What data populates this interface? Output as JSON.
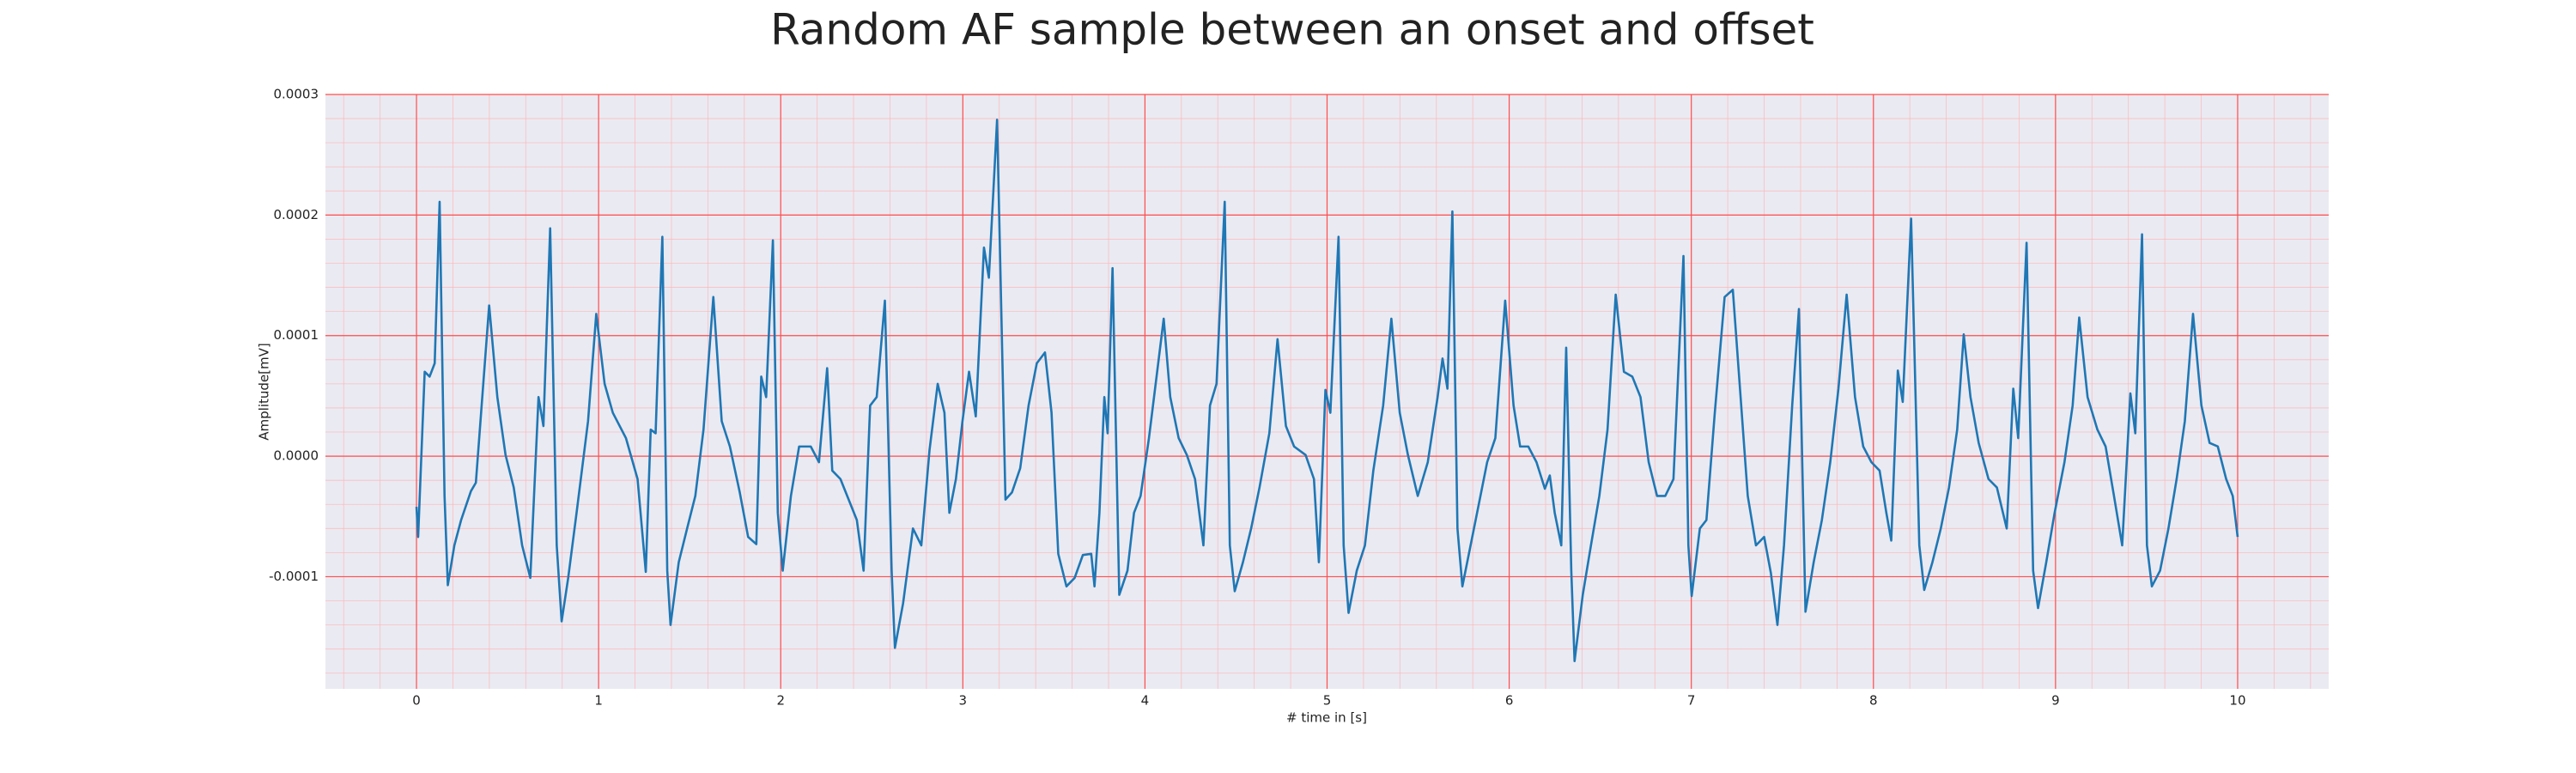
{
  "chart_data": {
    "type": "line",
    "title": "Random AF sample between an onset and offset",
    "xlabel": "# time in [s]",
    "ylabel": "Amplitude[mV]",
    "color": "#1f77b4",
    "grid": true,
    "minor_grid": true,
    "xlim": [
      -0.5,
      10.5
    ],
    "ylim": [
      -0.000193,
      0.0003
    ],
    "xticks": [
      0,
      1,
      2,
      3,
      4,
      5,
      6,
      7,
      8,
      9,
      10
    ],
    "yticks": [
      {
        "value": -0.0001,
        "label": "-0.0001"
      },
      {
        "value": 0,
        "label": "0.0000"
      },
      {
        "value": 0.0001,
        "label": "0.0001"
      },
      {
        "value": 0.0002,
        "label": "0.0002"
      },
      {
        "value": 0.0003,
        "label": "0.0003"
      }
    ],
    "x": [
      0,
      0.009,
      0.045,
      0.072,
      0.1,
      0.127,
      0.154,
      0.172,
      0.208,
      0.245,
      0.299,
      0.326,
      0.399,
      0.444,
      0.489,
      0.534,
      0.58,
      0.625,
      0.67,
      0.697,
      0.734,
      0.77,
      0.797,
      0.833,
      0.879,
      0.942,
      0.987,
      1.033,
      1.078,
      1.15,
      1.214,
      1.259,
      1.286,
      1.313,
      1.35,
      1.377,
      1.395,
      1.44,
      1.486,
      1.531,
      1.576,
      1.63,
      1.676,
      1.721,
      1.775,
      1.821,
      1.866,
      1.893,
      1.92,
      1.957,
      1.984,
      2.011,
      2.056,
      2.101,
      2.165,
      2.21,
      2.255,
      2.283,
      2.328,
      2.373,
      2.418,
      2.455,
      2.491,
      2.527,
      2.572,
      2.609,
      2.627,
      2.672,
      2.726,
      2.772,
      2.817,
      2.862,
      2.899,
      2.926,
      2.962,
      2.998,
      3.034,
      3.071,
      3.116,
      3.143,
      3.188,
      3.234,
      3.27,
      3.315,
      3.361,
      3.406,
      3.451,
      3.487,
      3.524,
      3.569,
      3.614,
      3.659,
      3.705,
      3.723,
      3.75,
      3.777,
      3.795,
      3.822,
      3.859,
      3.904,
      3.94,
      3.976,
      4.022,
      4.067,
      4.103,
      4.139,
      4.185,
      4.23,
      4.275,
      4.321,
      4.357,
      4.393,
      4.438,
      4.466,
      4.493,
      4.538,
      4.583,
      4.629,
      4.683,
      4.728,
      4.774,
      4.819,
      4.882,
      4.928,
      4.955,
      4.991,
      5.018,
      5.063,
      5.091,
      5.118,
      5.163,
      5.208,
      5.254,
      5.308,
      5.353,
      5.399,
      5.444,
      5.498,
      5.553,
      5.607,
      5.634,
      5.661,
      5.688,
      5.716,
      5.743,
      5.788,
      5.833,
      5.879,
      5.924,
      5.978,
      6.024,
      6.06,
      6.105,
      6.15,
      6.196,
      6.223,
      6.25,
      6.286,
      6.313,
      6.341,
      6.359,
      6.404,
      6.449,
      6.495,
      6.54,
      6.585,
      6.63,
      6.676,
      6.721,
      6.766,
      6.812,
      6.857,
      6.902,
      6.957,
      6.984,
      7.002,
      7.047,
      7.083,
      7.129,
      7.183,
      7.228,
      7.264,
      7.31,
      7.355,
      7.4,
      7.437,
      7.473,
      7.509,
      7.554,
      7.591,
      7.627,
      7.672,
      7.717,
      7.763,
      7.808,
      7.853,
      7.899,
      7.944,
      7.989,
      8.034,
      8.071,
      8.098,
      8.134,
      8.161,
      8.207,
      8.252,
      8.279,
      8.324,
      8.37,
      8.415,
      8.46,
      8.496,
      8.533,
      8.578,
      8.632,
      8.678,
      8.732,
      8.768,
      8.795,
      8.841,
      8.877,
      8.904,
      8.949,
      8.995,
      9.049,
      9.094,
      9.13,
      9.176,
      9.23,
      9.275,
      9.321,
      9.366,
      9.411,
      9.438,
      9.475,
      9.502,
      9.529,
      9.574,
      9.62,
      9.665,
      9.71,
      9.755,
      9.801,
      9.846,
      9.891,
      9.937,
      9.973,
      10.0
    ],
    "values": [
      -4.2e-05,
      -6.7e-05,
      7e-05,
      6.6e-05,
      7.7e-05,
      0.000211,
      -3.3e-05,
      -0.000107,
      -7.4e-05,
      -5.3e-05,
      -2.9e-05,
      -2.2e-05,
      0.000125,
      4.9e-05,
      1e-06,
      -2.6e-05,
      -7.4e-05,
      -0.000101,
      4.9e-05,
      2.5e-05,
      0.000189,
      -7.4e-05,
      -0.000137,
      -0.000101,
      -4.7e-05,
      2.9e-05,
      0.000118,
      6e-05,
      3.6e-05,
      1.5e-05,
      -1.9e-05,
      -9.6e-05,
      2.2e-05,
      1.9e-05,
      0.000182,
      -9.5e-05,
      -0.00014,
      -8.8e-05,
      -6e-05,
      -3.3e-05,
      2.2e-05,
      0.000132,
      2.9e-05,
      8e-06,
      -3e-05,
      -6.7e-05,
      -7.3e-05,
      6.6e-05,
      4.9e-05,
      0.000179,
      -4.7e-05,
      -9.5e-05,
      -3.3e-05,
      8e-06,
      8e-06,
      -5e-06,
      7.3e-05,
      -1.2e-05,
      -1.9e-05,
      -3.6e-05,
      -5.3e-05,
      -9.5e-05,
      4.2e-05,
      4.9e-05,
      0.000129,
      -9.5e-05,
      -0.000159,
      -0.000122,
      -6e-05,
      -7.4e-05,
      5e-06,
      6e-05,
      3.6e-05,
      -4.7e-05,
      -1.9e-05,
      2.9e-05,
      7e-05,
      3.3e-05,
      0.000173,
      0.000148,
      0.000279,
      -3.6e-05,
      -3e-05,
      -1e-05,
      4.2e-05,
      7.7e-05,
      8.6e-05,
      3.6e-05,
      -8.1e-05,
      -0.000108,
      -0.000101,
      -8.2e-05,
      -8.1e-05,
      -0.000108,
      -4.7e-05,
      4.9e-05,
      1.9e-05,
      0.000156,
      -0.000115,
      -9.5e-05,
      -4.7e-05,
      -3.3e-05,
      1.5e-05,
      7e-05,
      0.000114,
      4.9e-05,
      1.5e-05,
      1e-06,
      -1.9e-05,
      -7.4e-05,
      4.2e-05,
      6e-05,
      0.000211,
      -7.4e-05,
      -0.000112,
      -8.8e-05,
      -6e-05,
      -2.6e-05,
      1.9e-05,
      9.7e-05,
      2.5e-05,
      8e-06,
      1e-06,
      -1.9e-05,
      -8.8e-05,
      5.5e-05,
      3.6e-05,
      0.000182,
      -7.4e-05,
      -0.00013,
      -9.5e-05,
      -7.4e-05,
      -1.2e-05,
      4.2e-05,
      0.000114,
      3.6e-05,
      1e-06,
      -3.3e-05,
      -5e-06,
      4.9e-05,
      8.1e-05,
      5.6e-05,
      0.000203,
      -6e-05,
      -0.000108,
      -7.4e-05,
      -4e-05,
      -5e-06,
      1.5e-05,
      0.000129,
      4.2e-05,
      8e-06,
      8e-06,
      -5e-06,
      -2.7e-05,
      -1.6e-05,
      -4.7e-05,
      -7.4e-05,
      9e-05,
      -9.5e-05,
      -0.00017,
      -0.000115,
      -7.4e-05,
      -3.3e-05,
      2.2e-05,
      0.000134,
      7e-05,
      6.6e-05,
      4.9e-05,
      -5e-06,
      -3.3e-05,
      -3.3e-05,
      -1.9e-05,
      0.000166,
      -7.4e-05,
      -0.000116,
      -6e-05,
      -5.3e-05,
      3.6e-05,
      0.000132,
      0.000138,
      6.3e-05,
      -3.3e-05,
      -7.4e-05,
      -6.7e-05,
      -9.7e-05,
      -0.00014,
      -7.4e-05,
      4.2e-05,
      0.000122,
      -0.000129,
      -8.8e-05,
      -5.3e-05,
      -5e-06,
      5.6e-05,
      0.000134,
      4.9e-05,
      8e-06,
      -5e-06,
      -1.2e-05,
      -4.7e-05,
      -7e-05,
      7.1e-05,
      4.5e-05,
      0.000197,
      -7.4e-05,
      -0.000111,
      -8.8e-05,
      -6e-05,
      -2.6e-05,
      2.2e-05,
      0.000101,
      4.9e-05,
      1.1e-05,
      -1.9e-05,
      -2.6e-05,
      -6e-05,
      5.6e-05,
      1.5e-05,
      0.000177,
      -9.5e-05,
      -0.000126,
      -8.8e-05,
      -4.7e-05,
      -5e-06,
      4.2e-05,
      0.000115,
      4.9e-05,
      2.2e-05,
      8e-06,
      -3.3e-05,
      -7.4e-05,
      5.2e-05,
      1.9e-05,
      0.000184,
      -7.4e-05,
      -0.000108,
      -9.5e-05,
      -6e-05,
      -1.9e-05,
      2.9e-05,
      0.000118,
      4.2e-05,
      1.1e-05,
      8e-06,
      -1.9e-05,
      -3.3e-05,
      -6.7e-05
    ]
  }
}
